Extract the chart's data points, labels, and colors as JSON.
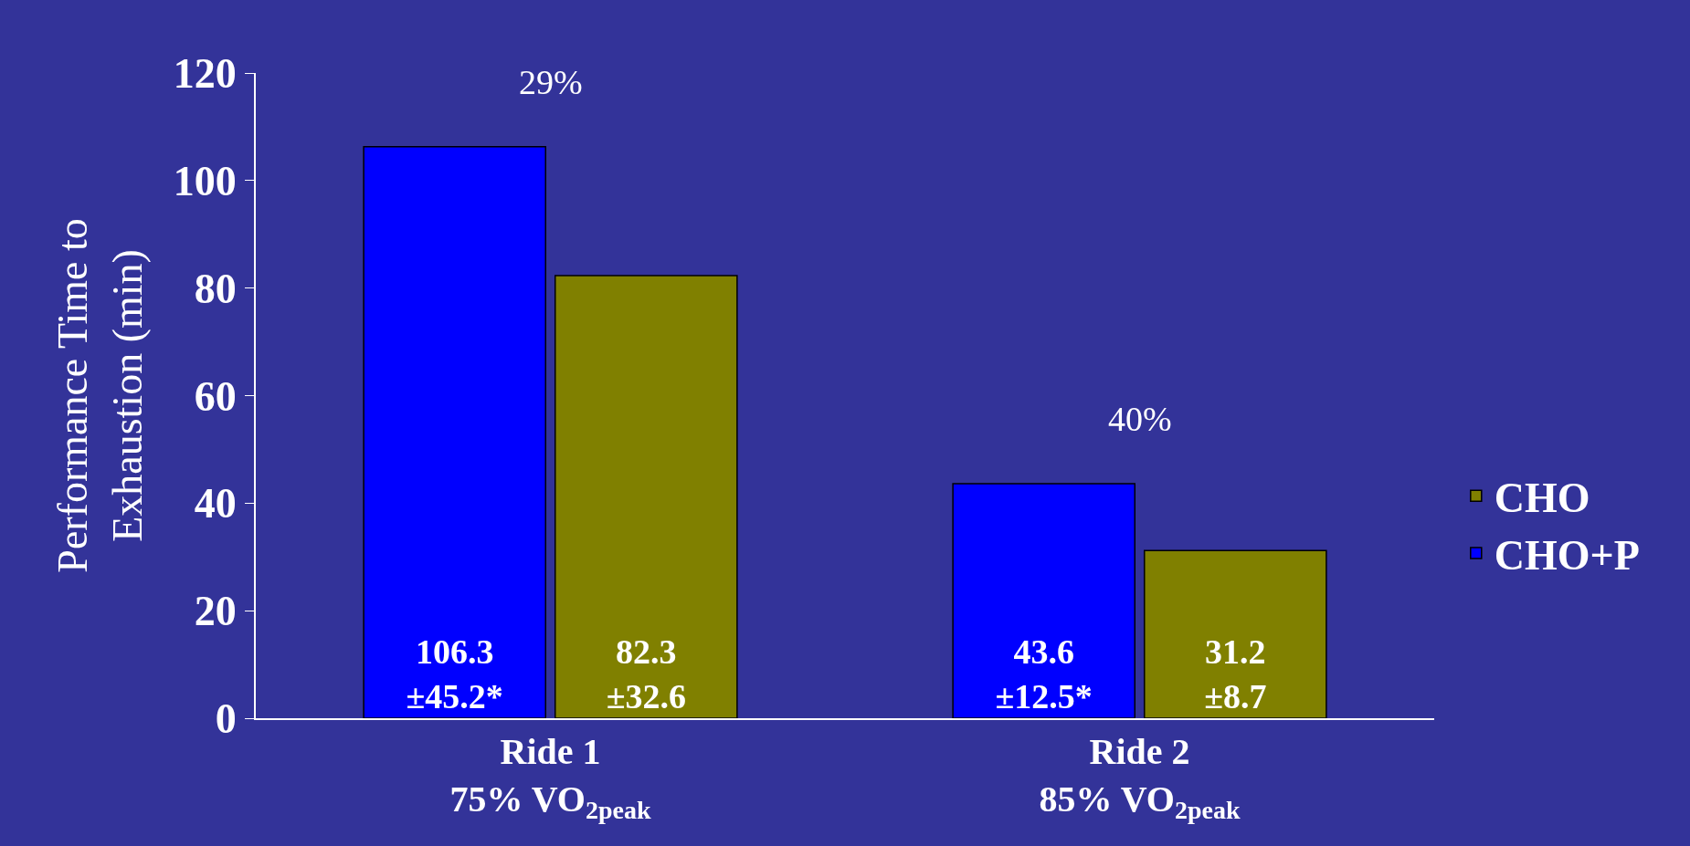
{
  "chart_data": {
    "type": "bar",
    "ylabel": "Performance Time to\nExhaustion (min)",
    "categories": [
      "Ride 1\n75% VO$_{2peak}$",
      "Ride 2\n85% VO$_{2peak}$"
    ],
    "series": [
      {
        "name": "CHO+P",
        "color": "#0000ff",
        "values": [
          106.3,
          43.6
        ],
        "value_labels": [
          "106.3\n±45.2*",
          "43.6\n±12.5*"
        ]
      },
      {
        "name": "CHO",
        "color": "#808000",
        "values": [
          82.3,
          31.2
        ],
        "value_labels": [
          "82.3\n±32.6",
          "31.2\n±8.7"
        ]
      }
    ],
    "annotations": [
      "29%",
      "40%"
    ],
    "ylim": [
      0,
      120
    ],
    "yticks": [
      0,
      20,
      40,
      60,
      80,
      100,
      120
    ],
    "grid": false,
    "legend": "right"
  }
}
